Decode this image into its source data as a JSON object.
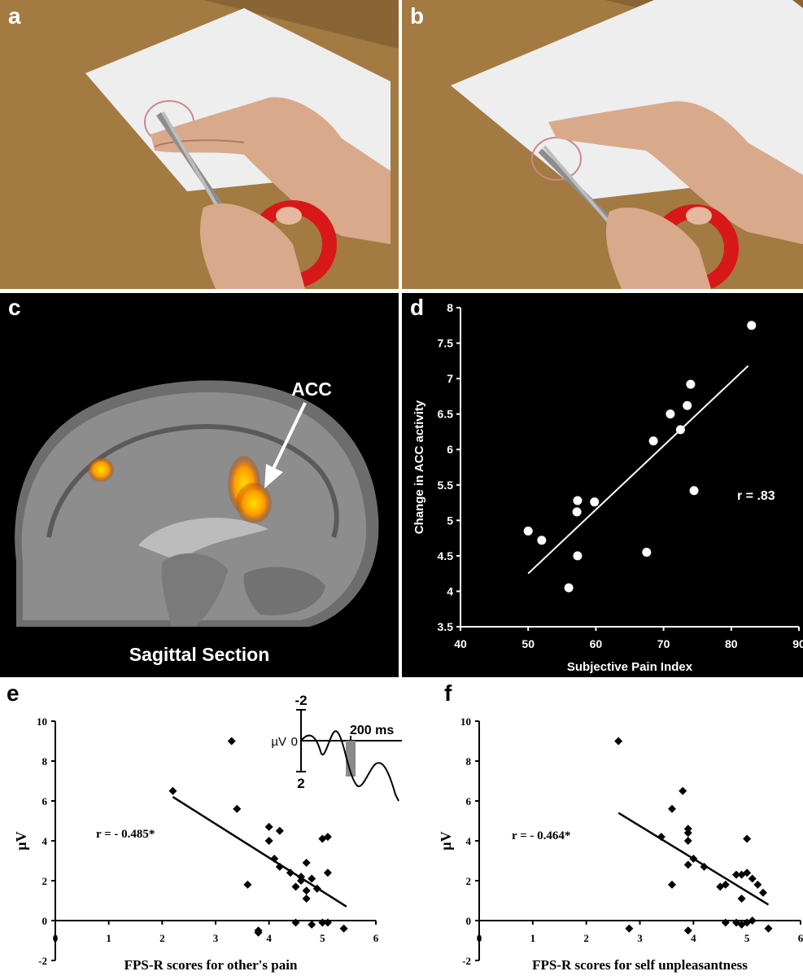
{
  "panels": {
    "a": {
      "label": "a"
    },
    "b": {
      "label": "b"
    },
    "c": {
      "label": "c",
      "arrow_label": "ACC",
      "caption": "Sagittal Section"
    },
    "d": {
      "label": "d"
    },
    "e": {
      "label": "e"
    },
    "f": {
      "label": "f"
    }
  },
  "inset": {
    "top_tick": "-2",
    "zero_tick": "0",
    "bottom_tick": "2",
    "unit": "µV",
    "time_label": "200 ms"
  },
  "colors": {
    "photo_table": "#b48a4c",
    "paper": "#ececec",
    "scissors_red": "#d81818",
    "accent_activation": "#ffa400"
  },
  "chart_data": [
    {
      "id": "d",
      "type": "scatter",
      "xlabel": "Subjective Pain Index",
      "ylabel": "Change in ACC activity",
      "xlim": [
        40,
        90
      ],
      "ylim": [
        3.5,
        8
      ],
      "xticks": [
        "40",
        "50",
        "60",
        "70",
        "80",
        "90"
      ],
      "yticks": [
        "3.5",
        "4",
        "4.5",
        "5",
        "5.5",
        "6",
        "6.5",
        "7",
        "7.5",
        "8"
      ],
      "annotation": "r = .83",
      "points": [
        [
          50,
          4.85
        ],
        [
          52,
          4.72
        ],
        [
          56,
          4.05
        ],
        [
          57.2,
          5.12
        ],
        [
          57.3,
          5.28
        ],
        [
          57.3,
          4.5
        ],
        [
          59.8,
          5.26
        ],
        [
          67.5,
          4.55
        ],
        [
          68.5,
          6.12
        ],
        [
          71,
          6.5
        ],
        [
          72.5,
          6.28
        ],
        [
          73.5,
          6.62
        ],
        [
          74,
          6.92
        ],
        [
          74.5,
          5.42
        ],
        [
          83,
          7.75
        ]
      ],
      "fit_line": [
        [
          50,
          4.25
        ],
        [
          82.5,
          7.18
        ]
      ],
      "background": "#000000",
      "foreground": "#ffffff"
    },
    {
      "id": "e",
      "type": "scatter",
      "xlabel": "FPS-R scores for other's pain",
      "ylabel": "µV",
      "xlim": [
        0,
        6
      ],
      "ylim": [
        -2,
        10
      ],
      "xticks": [
        "0",
        "1",
        "2",
        "3",
        "4",
        "5",
        "6"
      ],
      "yticks": [
        "-2",
        "0",
        "2",
        "4",
        "6",
        "8",
        "10"
      ],
      "annotation": "r = - 0.485*",
      "points": [
        [
          2.2,
          6.5
        ],
        [
          3.3,
          9.0
        ],
        [
          3.4,
          5.6
        ],
        [
          3.6,
          1.8
        ],
        [
          3.8,
          -0.5
        ],
        [
          3.8,
          -0.6
        ],
        [
          4.0,
          4.7
        ],
        [
          4.0,
          4.0
        ],
        [
          4.1,
          3.1
        ],
        [
          4.2,
          4.5
        ],
        [
          4.2,
          2.7
        ],
        [
          4.4,
          2.4
        ],
        [
          4.5,
          -0.1
        ],
        [
          4.5,
          1.7
        ],
        [
          4.6,
          2.2
        ],
        [
          4.6,
          2.0
        ],
        [
          4.7,
          2.9
        ],
        [
          4.7,
          1.1
        ],
        [
          4.7,
          1.5
        ],
        [
          4.8,
          -0.2
        ],
        [
          4.8,
          2.1
        ],
        [
          4.9,
          1.6
        ],
        [
          5.0,
          4.1
        ],
        [
          5.0,
          -0.1
        ],
        [
          5.1,
          4.2
        ],
        [
          5.1,
          2.4
        ],
        [
          5.1,
          -0.1
        ],
        [
          5.4,
          -0.4
        ]
      ],
      "fit_line": [
        [
          2.2,
          6.2
        ],
        [
          5.45,
          0.7
        ]
      ],
      "background": "#ffffff",
      "foreground": "#000000"
    },
    {
      "id": "f",
      "type": "scatter",
      "xlabel": "FPS-R scores for self unpleasantness",
      "ylabel": "µV",
      "xlim": [
        0,
        6
      ],
      "ylim": [
        -2,
        10
      ],
      "xticks": [
        "0",
        "1",
        "2",
        "3",
        "4",
        "5",
        "6"
      ],
      "yticks": [
        "-2",
        "0",
        "2",
        "4",
        "6",
        "8",
        "10"
      ],
      "annotation": "r = - 0.464*",
      "points": [
        [
          2.6,
          9.0
        ],
        [
          2.8,
          -0.4
        ],
        [
          3.4,
          4.2
        ],
        [
          3.6,
          5.6
        ],
        [
          3.6,
          1.8
        ],
        [
          3.8,
          6.5
        ],
        [
          3.9,
          4.6
        ],
        [
          3.9,
          4.4
        ],
        [
          3.9,
          4.0
        ],
        [
          3.9,
          2.8
        ],
        [
          3.9,
          -0.5
        ],
        [
          4.0,
          3.1
        ],
        [
          4.2,
          2.7
        ],
        [
          4.5,
          1.7
        ],
        [
          4.6,
          1.8
        ],
        [
          4.6,
          -0.1
        ],
        [
          4.8,
          2.3
        ],
        [
          4.8,
          -0.1
        ],
        [
          4.9,
          2.3
        ],
        [
          4.9,
          1.1
        ],
        [
          4.9,
          -0.2
        ],
        [
          5.0,
          2.4
        ],
        [
          5.0,
          4.1
        ],
        [
          5.0,
          -0.1
        ],
        [
          5.1,
          0.0
        ],
        [
          5.1,
          2.1
        ],
        [
          5.2,
          1.8
        ],
        [
          5.3,
          1.4
        ],
        [
          5.4,
          -0.4
        ]
      ],
      "fit_line": [
        [
          2.6,
          5.4
        ],
        [
          5.4,
          0.8
        ]
      ],
      "background": "#ffffff",
      "foreground": "#000000"
    }
  ]
}
